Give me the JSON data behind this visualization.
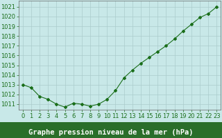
{
  "x": [
    0,
    1,
    2,
    3,
    4,
    5,
    6,
    7,
    8,
    9,
    10,
    11,
    12,
    13,
    14,
    15,
    16,
    17,
    18,
    19,
    20,
    21,
    22,
    23
  ],
  "y": [
    1013.0,
    1012.7,
    1011.8,
    1011.5,
    1011.0,
    1010.7,
    1011.1,
    1011.0,
    1010.8,
    1011.0,
    1011.5,
    1012.4,
    1013.7,
    1014.5,
    1015.2,
    1015.8,
    1016.4,
    1017.0,
    1017.7,
    1018.5,
    1019.2,
    1019.9,
    1020.3,
    1021.0
  ],
  "line_color": "#1a6e1a",
  "marker": "D",
  "marker_size": 2.0,
  "bg_color": "#c8e8e8",
  "plot_bg_color": "#c8e8e8",
  "grid_color": "#aacccc",
  "ylabel_ticks": [
    1011,
    1012,
    1013,
    1014,
    1015,
    1016,
    1017,
    1018,
    1019,
    1020,
    1021
  ],
  "ylim": [
    1010.4,
    1021.6
  ],
  "xlim": [
    -0.5,
    23.5
  ],
  "xlabel": "Graphe pression niveau de la mer (hPa)",
  "xlabel_fontsize": 7.5,
  "tick_fontsize": 6.0,
  "tick_color": "#1a6e1a",
  "label_color": "#ffffff",
  "label_bg_color": "#2a6e2a",
  "spine_color": "#666666"
}
